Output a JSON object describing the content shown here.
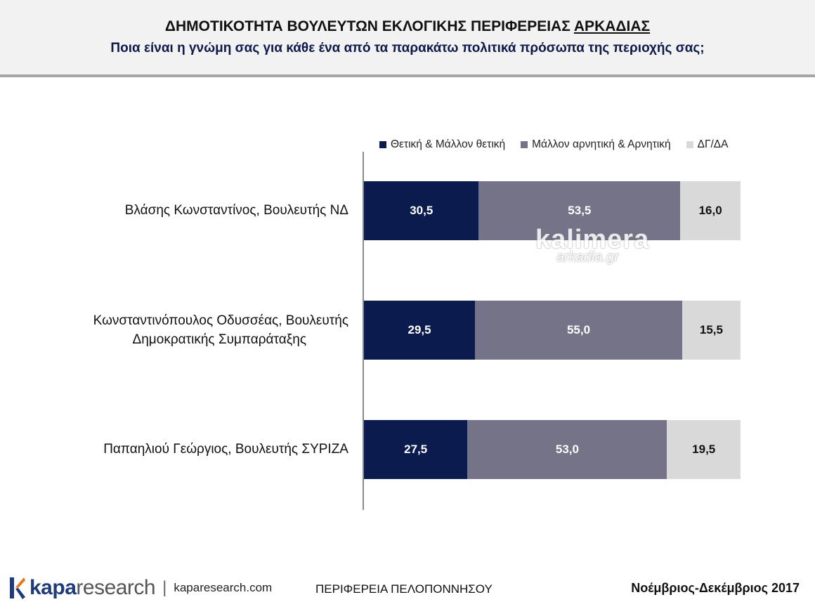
{
  "header": {
    "title_main": "ΔΗΜΟΤΙΚΟΤΗΤΑ ΒΟΥΛΕΥΤΩΝ ΕΚΛΟΓΙΚΗΣ ΠΕΡΙΦΕΡΕΙΑΣ ",
    "title_region": "ΑΡΚΑΔΙΑΣ",
    "subtitle": "Ποια είναι η γνώμη σας για κάθε ένα από τα παρακάτω πολιτικά πρόσωπα της περιοχής σας;"
  },
  "chart_data": {
    "type": "bar",
    "orientation": "horizontal",
    "stacked": true,
    "categories": [
      "Βλάσης Κωνσταντίνος, Βουλευτής ΝΔ",
      "Κωνσταντινόπουλος Οδυσσέας, Βουλευτής Δημοκρατικής Συμπαράταξης",
      "Παπαηλιού Γεώργιος, Βουλευτής ΣΥΡΙΖΑ"
    ],
    "series": [
      {
        "name": "Θετική & Μάλλον θετική",
        "color": "#0c1b4d",
        "label_color": "#ffffff",
        "values": [
          30.5,
          29.5,
          27.5
        ],
        "labels": [
          "30,5",
          "29,5",
          "27,5"
        ]
      },
      {
        "name": "Μάλλον αρνητική & Αρνητική",
        "color": "#747388",
        "label_color": "#ffffff",
        "values": [
          53.5,
          55.0,
          53.0
        ],
        "labels": [
          "53,5",
          "55,0",
          "53,0"
        ]
      },
      {
        "name": "ΔΓ/ΔΑ",
        "color": "#d9d9d9",
        "label_color": "#111111",
        "values": [
          16.0,
          15.5,
          19.5
        ],
        "labels": [
          "16,0",
          "15,5",
          "19,5"
        ]
      }
    ],
    "xlim": [
      0,
      100
    ],
    "legend_position": "top-right",
    "grid": false
  },
  "watermark": {
    "line1": "kalimera",
    "line2": "arkadia.gr"
  },
  "footer": {
    "logo_bold": "kapa",
    "logo_light": "research",
    "separator": "|",
    "url": "kaparesearch.com",
    "center": "ΠΕΡΙΦΕΡΕΙΑ ΠΕΛΟΠΟΝΝΗΣΟΥ",
    "date": "Νοέμβριος-Δεκέμβριος 2017"
  }
}
